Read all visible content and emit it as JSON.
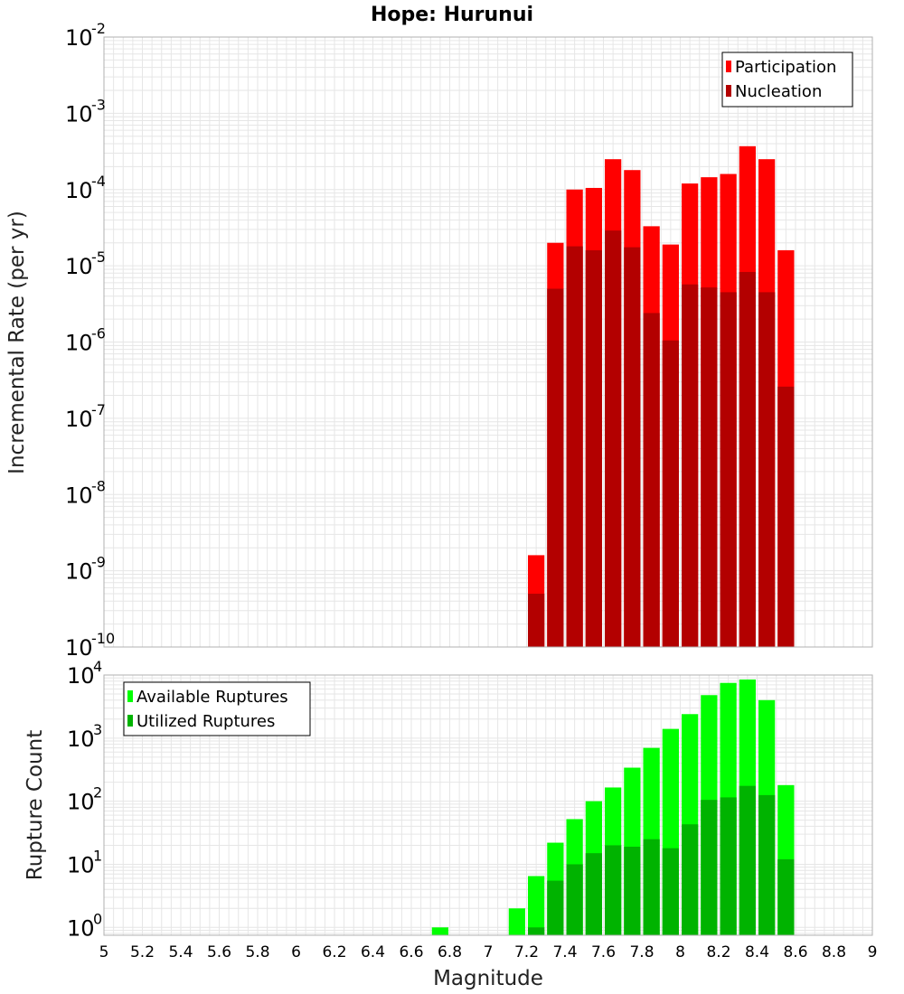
{
  "chart_data": [
    {
      "type": "bar",
      "title": "Hope: Hurunui",
      "ylabel": "Incremental Rate (per yr)",
      "xlabel": "",
      "yscale": "log",
      "ylim": [
        1e-10,
        0.01
      ],
      "xlim": [
        5,
        9
      ],
      "bar_width": 0.1,
      "legend_position": "top-right",
      "x": [
        7.25,
        7.35,
        7.45,
        7.55,
        7.65,
        7.75,
        7.85,
        7.95,
        8.05,
        8.15,
        8.25,
        8.35,
        8.45,
        8.55
      ],
      "series": [
        {
          "name": "Participation",
          "color": "#ff0000",
          "values": [
            1.6e-09,
            2e-05,
            0.0001,
            0.000105,
            0.00025,
            0.00018,
            3.3e-05,
            1.9e-05,
            0.00012,
            0.000145,
            0.00016,
            0.00037,
            0.00025,
            1.6e-05
          ]
        },
        {
          "name": "Nucleation",
          "color": "#b30000",
          "values": [
            5e-10,
            5e-06,
            1.8e-05,
            1.6e-05,
            2.9e-05,
            1.75e-05,
            2.4e-06,
            1.05e-06,
            5.7e-06,
            5.2e-06,
            4.5e-06,
            8.3e-06,
            4.5e-06,
            2.6e-07
          ]
        }
      ]
    },
    {
      "type": "bar",
      "title": "",
      "ylabel": "Rupture Count",
      "xlabel": "Magnitude",
      "yscale": "log",
      "ylim": [
        0.75,
        10000
      ],
      "xlim": [
        5,
        9
      ],
      "bar_width": 0.1,
      "legend_position": "top-left",
      "x_ticks": [
        "5",
        "5.2",
        "5.4",
        "5.6",
        "5.8",
        "6",
        "6.2",
        "6.4",
        "6.6",
        "6.8",
        "7",
        "7.2",
        "7.4",
        "7.6",
        "7.8",
        "8",
        "8.2",
        "8.4",
        "8.6",
        "8.8",
        "9"
      ],
      "x": [
        6.75,
        7.15,
        7.25,
        7.35,
        7.45,
        7.55,
        7.65,
        7.75,
        7.85,
        7.95,
        8.05,
        8.15,
        8.25,
        8.35,
        8.45,
        8.55
      ],
      "series": [
        {
          "name": "Available Ruptures",
          "color": "#00ff00",
          "values": [
            1,
            2,
            6.5,
            22,
            52,
            100,
            165,
            340,
            700,
            1400,
            2400,
            4800,
            7500,
            8500,
            4000,
            180
          ]
        },
        {
          "name": "Utilized Ruptures",
          "color": "#00b300",
          "values": [
            0,
            0,
            1,
            5.5,
            10,
            15,
            20,
            19,
            25,
            18,
            43,
            105,
            115,
            175,
            125,
            12
          ]
        }
      ]
    }
  ],
  "colors": {
    "grid": "#e6e6e6",
    "frame": "#b0b0b0",
    "legend_border": "#000000"
  }
}
